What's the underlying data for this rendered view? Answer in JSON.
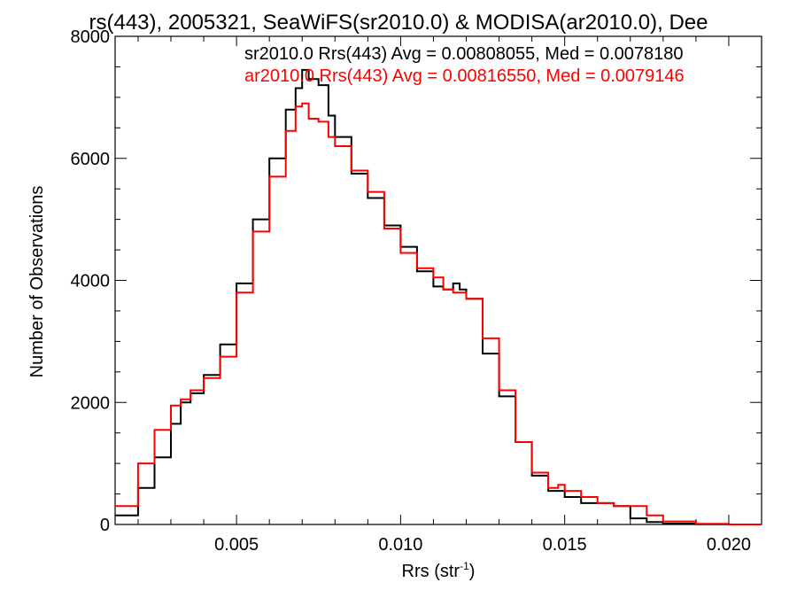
{
  "chart_data": {
    "type": "line",
    "title": "rs(443), 2005321, SeaWiFS(sr2010.0) & MODISA(ar2010.0), Dee",
    "xlabel": "Rrs (str",
    "xlabel_sup": "-1",
    "xlabel_close": ")",
    "ylabel": "Number of Observations",
    "xlim": [
      0.0013,
      0.021
    ],
    "ylim": [
      0,
      8000
    ],
    "x_ticks": [
      0.005,
      0.01,
      0.015,
      0.02
    ],
    "x_tick_labels": [
      "0.005",
      "0.010",
      "0.015",
      "0.020"
    ],
    "y_ticks": [
      0,
      2000,
      4000,
      6000,
      8000
    ],
    "y_tick_labels": [
      "0",
      "2000",
      "4000",
      "6000",
      "8000"
    ],
    "grid": false,
    "series": [
      {
        "name": "sr2010.0 Rrs(443) Avg = 0.00808055, Med = 0.0078180",
        "color": "#000000",
        "x": [
          0.0013,
          0.002,
          0.0025,
          0.003,
          0.0033,
          0.0036,
          0.004,
          0.0045,
          0.005,
          0.0055,
          0.006,
          0.0065,
          0.0068,
          0.007,
          0.0072,
          0.0075,
          0.0078,
          0.008,
          0.0085,
          0.009,
          0.0095,
          0.01,
          0.0105,
          0.011,
          0.0113,
          0.0116,
          0.0118,
          0.012,
          0.0125,
          0.013,
          0.0135,
          0.014,
          0.0145,
          0.015,
          0.0155,
          0.016,
          0.0165,
          0.017,
          0.0175,
          0.018,
          0.019,
          0.02,
          0.021
        ],
        "y": [
          150,
          600,
          1100,
          1650,
          2000,
          2150,
          2450,
          2950,
          3950,
          5000,
          6000,
          6800,
          7150,
          7450,
          7300,
          7200,
          6700,
          6350,
          5750,
          5350,
          4900,
          4550,
          4150,
          3900,
          3850,
          3950,
          3850,
          3700,
          2800,
          2100,
          1350,
          800,
          550,
          450,
          350,
          350,
          300,
          100,
          40,
          15,
          5,
          0,
          0
        ]
      },
      {
        "name": "ar2010.0 Rrs(443) Avg = 0.00816550, Med = 0.0079146",
        "color": "#ff0000",
        "x": [
          0.0013,
          0.002,
          0.0025,
          0.003,
          0.0033,
          0.0036,
          0.004,
          0.0045,
          0.005,
          0.0055,
          0.006,
          0.0065,
          0.0068,
          0.007,
          0.0072,
          0.0075,
          0.0078,
          0.008,
          0.0085,
          0.009,
          0.0095,
          0.01,
          0.0105,
          0.011,
          0.0113,
          0.0116,
          0.0118,
          0.012,
          0.0125,
          0.013,
          0.0135,
          0.014,
          0.0145,
          0.0148,
          0.015,
          0.0155,
          0.016,
          0.0165,
          0.017,
          0.0175,
          0.018,
          0.019,
          0.02,
          0.021
        ],
        "y": [
          300,
          1000,
          1550,
          1950,
          2050,
          2200,
          2400,
          2750,
          3800,
          4800,
          5700,
          6450,
          6850,
          6900,
          6650,
          6600,
          6350,
          6200,
          5800,
          5450,
          4850,
          4450,
          4200,
          4050,
          3850,
          3800,
          3800,
          3700,
          3050,
          2200,
          1350,
          850,
          600,
          650,
          550,
          450,
          350,
          300,
          300,
          150,
          50,
          10,
          0,
          0
        ]
      }
    ]
  }
}
